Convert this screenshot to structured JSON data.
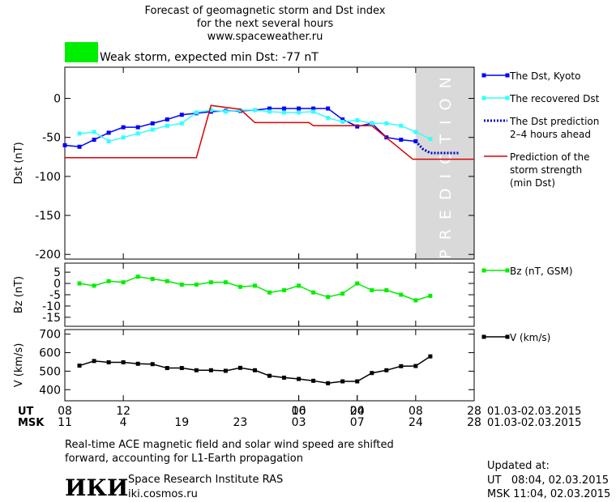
{
  "header": {
    "title_lines": [
      "Forecast of geomagnetic storm and Dst index",
      "for the next several hours",
      "www.spaceweather.ru"
    ]
  },
  "storm": {
    "color": "#00ee00",
    "label": "Weak storm, expected min Dst: -77 nT"
  },
  "chart_data": [
    {
      "type": "line",
      "ylabel": "Dst (nT)",
      "xlim": [
        0,
        28
      ],
      "ylim": [
        -206,
        40
      ],
      "yticks": [
        0,
        -50,
        -100,
        -150,
        -200
      ],
      "prediction_region": {
        "xlim": [
          24,
          28
        ],
        "label": "PREDICTION",
        "color": "#d9d9d9"
      },
      "series": [
        {
          "name": [
            "The Dst, Kyoto"
          ],
          "color": "#0000ff",
          "marker": "square",
          "dash": null,
          "x": [
            0,
            1,
            2,
            3,
            4,
            5,
            6,
            7,
            8,
            9,
            10,
            11,
            12,
            13,
            14,
            15,
            16,
            17,
            18,
            19,
            20,
            21,
            22,
            23,
            24
          ],
          "values": [
            -60,
            -62,
            -53,
            -44,
            -37,
            -37,
            -32,
            -27,
            -21,
            -19,
            -17,
            -16,
            -16,
            -15,
            -13,
            -13,
            -13,
            -13,
            -13,
            -27,
            -36,
            -32,
            -50,
            -53,
            -55
          ]
        },
        {
          "name": [
            "The recovered Dst"
          ],
          "color": "#33ffff",
          "marker": "square",
          "dash": null,
          "x": [
            1,
            2,
            3,
            4,
            5,
            6,
            7,
            8,
            9,
            10,
            11,
            12,
            13,
            14,
            15,
            16,
            17,
            18,
            19,
            20,
            21,
            22,
            23,
            24,
            25
          ],
          "values": [
            -45,
            -43,
            -55,
            -50,
            -45,
            -40,
            -35,
            -32,
            -18,
            -15,
            -17,
            -15,
            -15,
            -17,
            -18,
            -18,
            -17,
            -25,
            -30,
            -28,
            -32,
            -32,
            -35,
            -43,
            -52
          ]
        },
        {
          "name": [
            "The Dst prediction",
            "2–4 hours ahead"
          ],
          "color": "#0000cc",
          "marker": null,
          "dash": "2,2",
          "x": [
            24,
            24.5,
            25,
            26,
            27
          ],
          "values": [
            -55,
            -65,
            -70,
            -70,
            -70
          ]
        },
        {
          "name": [
            "Prediction of the",
            "storm strength",
            "(min Dst)"
          ],
          "color": "#dd0000",
          "marker": null,
          "dash": null,
          "x": [
            0,
            9,
            10,
            12,
            13,
            16.7,
            17,
            21,
            23.8,
            28
          ],
          "values": [
            -76,
            -76,
            -9,
            -14,
            -31,
            -31,
            -35,
            -35,
            -78,
            -78
          ]
        }
      ]
    },
    {
      "type": "line",
      "ylabel": "Bz (nT)",
      "xlim": [
        0,
        28
      ],
      "ylim": [
        -19,
        9
      ],
      "yticks": [
        5,
        0,
        -5,
        -10,
        -15
      ],
      "series": [
        {
          "name": [
            "Bz (nT, GSM)"
          ],
          "color": "#00ee00",
          "marker": "square",
          "dash": null,
          "x": [
            1,
            2,
            3,
            4,
            5,
            6,
            7,
            8,
            9,
            10,
            11,
            12,
            13,
            14,
            15,
            16,
            17,
            18,
            19,
            20,
            21,
            22,
            23,
            24,
            25
          ],
          "values": [
            0,
            -1,
            1,
            0.5,
            3,
            2,
            1,
            -0.5,
            -0.5,
            0.5,
            0.5,
            -1.5,
            -1,
            -4,
            -3,
            -1,
            -4,
            -6,
            -4.5,
            0,
            -3,
            -3,
            -5,
            -7.5,
            -5.5
          ]
        }
      ]
    },
    {
      "type": "line",
      "ylabel": "V (km/s)",
      "xlim": [
        0,
        28
      ],
      "ylim": [
        340,
        725
      ],
      "yticks": [
        400,
        500,
        600,
        700
      ],
      "xlabel": "UT",
      "x2label": "MSK",
      "xrange": "01.03-02.03.2015",
      "x2range": "01.03-02.03.2015",
      "xticks": [
        {
          "value": 0,
          "label": "08"
        },
        {
          "value": 4,
          "label": "12"
        },
        16,
        20,
        {
          "value": 16,
          "label": "00"
        },
        {
          "value": 20,
          "label": "04"
        },
        {
          "value": 24,
          "label": "08"
        },
        28
      ],
      "x2ticks": [
        {
          "value": 0,
          "label": "11"
        },
        4,
        {
          "value": 8,
          "label": "19"
        },
        {
          "value": 12,
          "label": "23"
        },
        {
          "value": 16,
          "label": "03"
        },
        {
          "value": 20,
          "label": "07"
        },
        24,
        28
      ],
      "series": [
        {
          "name": [
            "V (km/s)"
          ],
          "color": "#000000",
          "marker": "square",
          "dash": null,
          "x": [
            1,
            2,
            3,
            4,
            5,
            6,
            7,
            8,
            9,
            10,
            11,
            12,
            13,
            14,
            15,
            16,
            17,
            18,
            19,
            20,
            21,
            22,
            23,
            24,
            25
          ],
          "values": [
            530,
            555,
            548,
            548,
            540,
            538,
            517,
            517,
            505,
            505,
            502,
            518,
            505,
            475,
            465,
            458,
            448,
            435,
            445,
            445,
            490,
            505,
            527,
            528,
            580
          ]
        }
      ]
    }
  ],
  "footer": {
    "note_lines": [
      "Real-time ACE magnetic field and solar wind speed are shifted",
      "forward, accounting for L1-Earth propagation"
    ],
    "logo": "ИКИ",
    "institute": "Space Research Institute RAS",
    "site": "iki.cosmos.ru",
    "updated_lines": [
      "Updated at:",
      "UT   08:04, 02.03.2015",
      "MSK 11:04, 02.03.2015"
    ]
  }
}
